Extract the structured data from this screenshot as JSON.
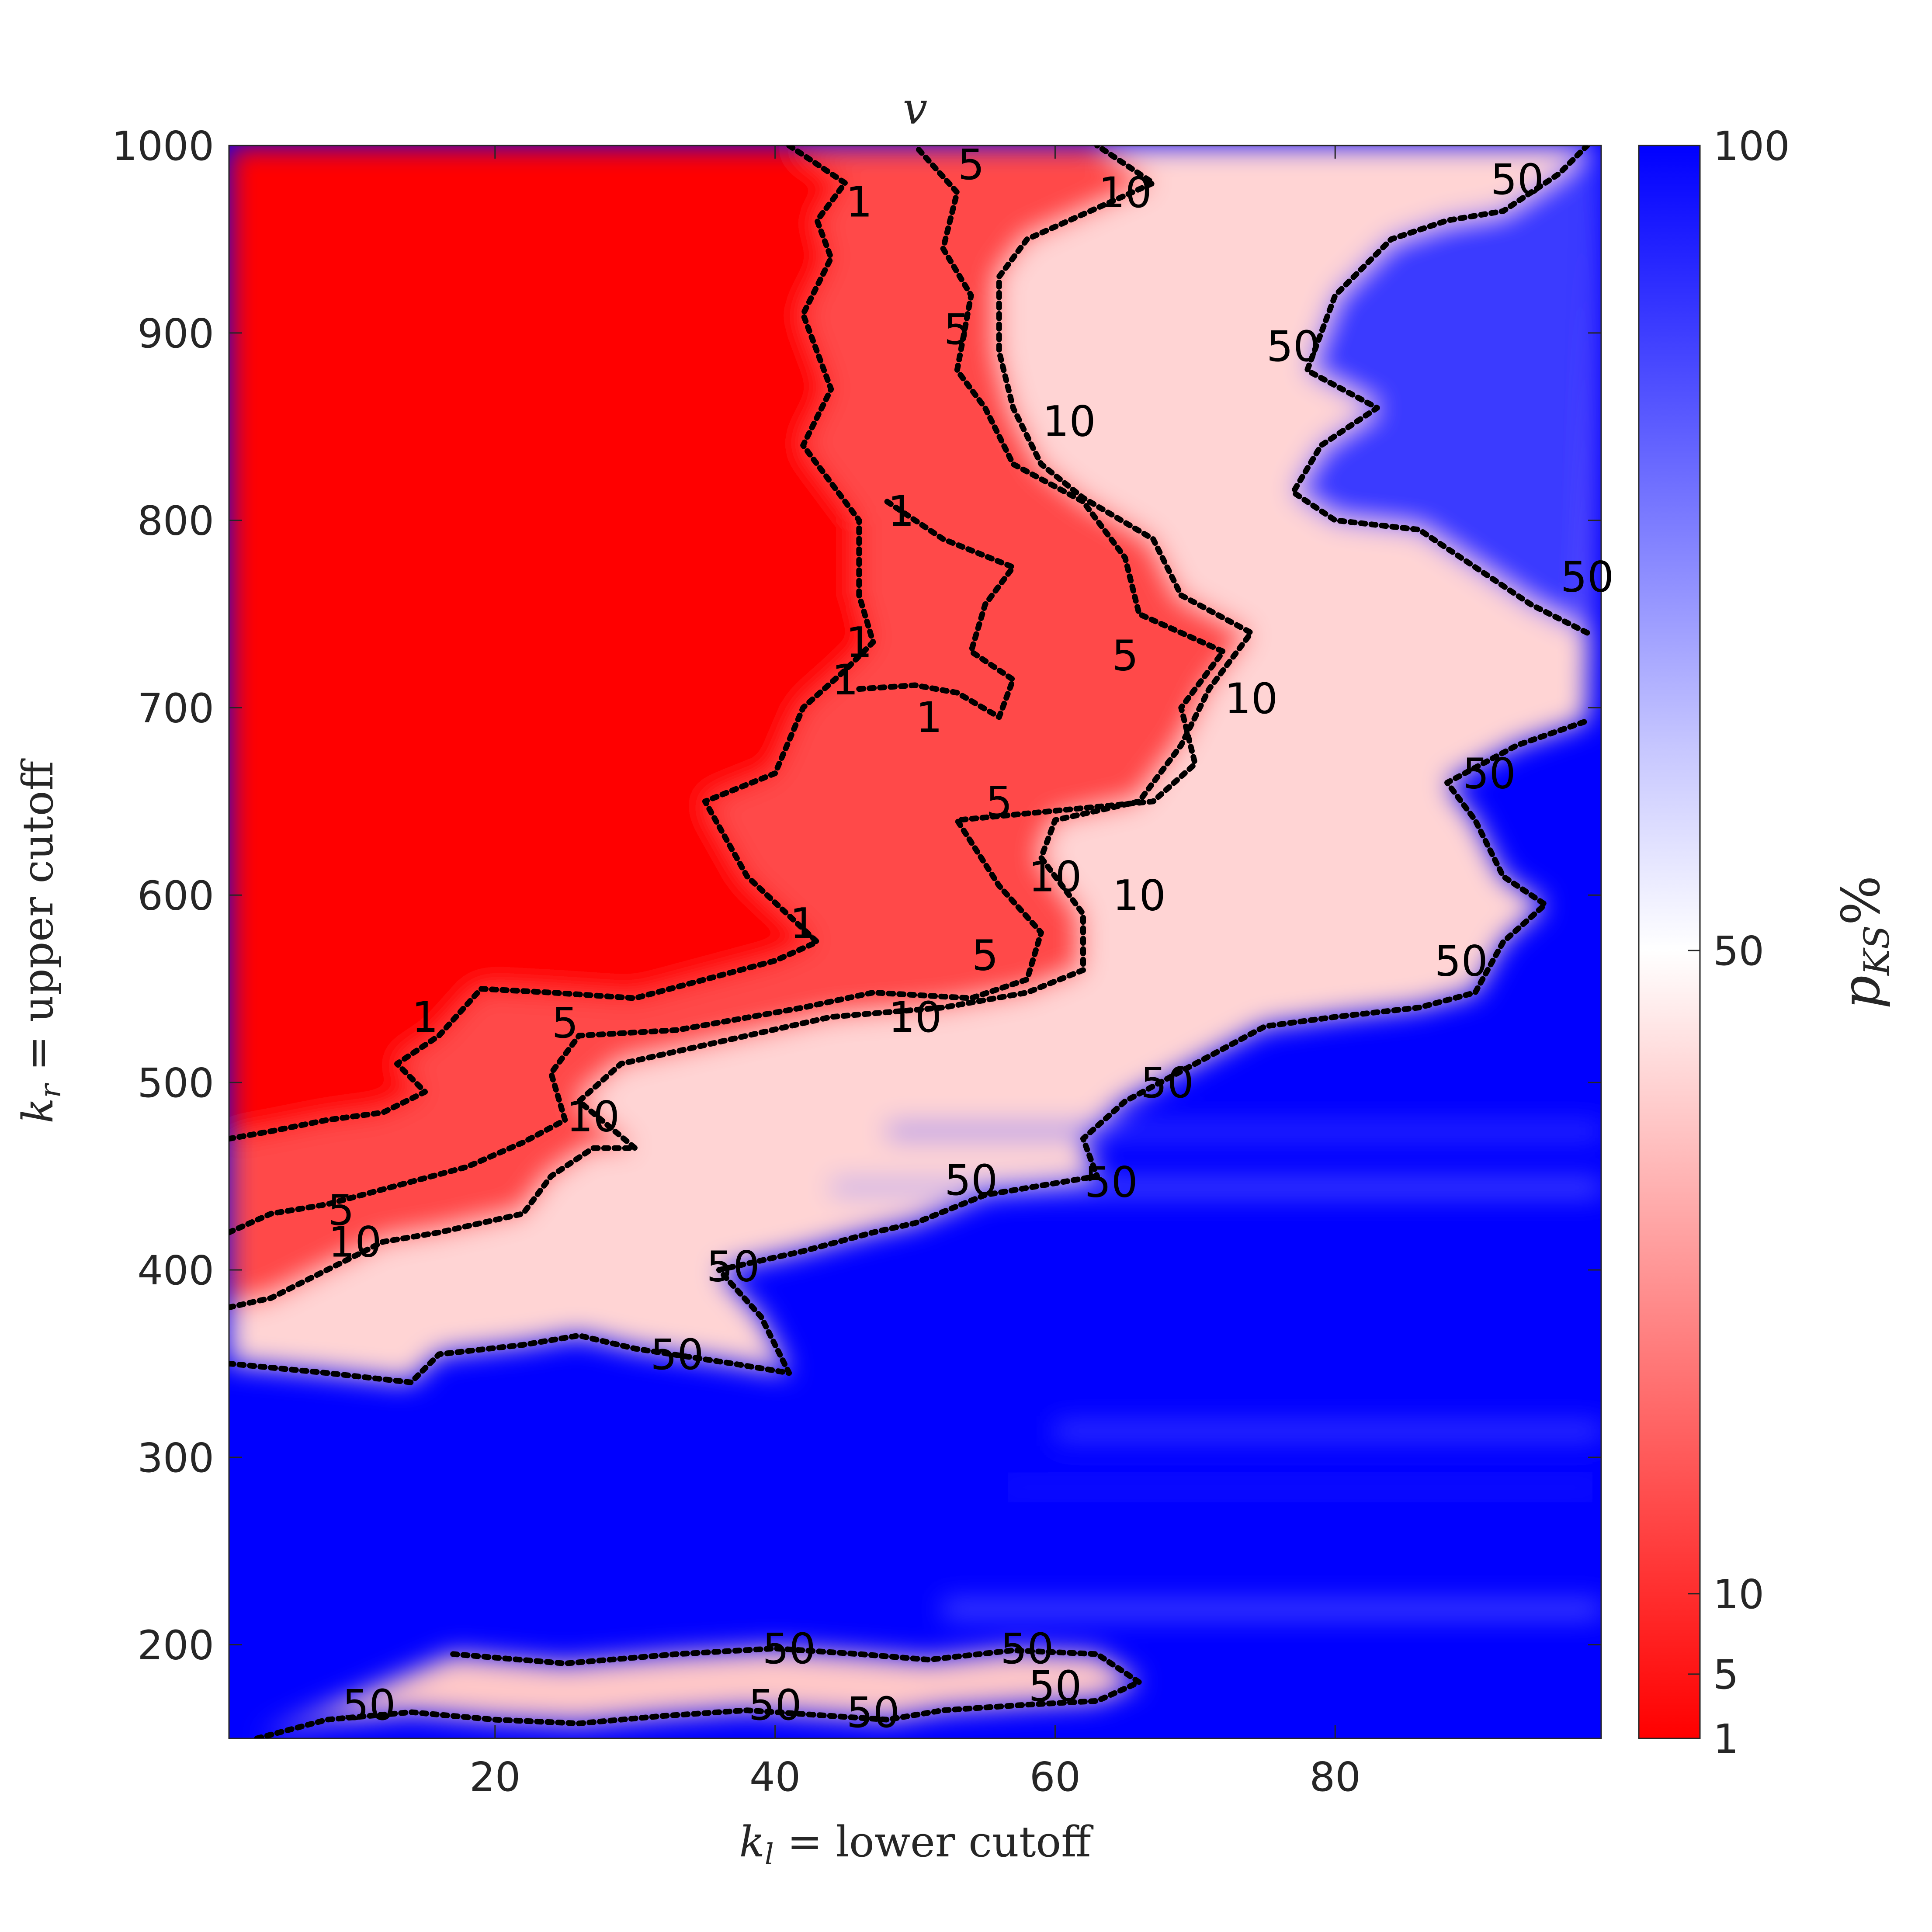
{
  "chart_data": {
    "type": "heatmap",
    "title": "v",
    "xlabel_var": "k",
    "xlabel_sub": "l",
    "xlabel_text": " = lower cutoff",
    "ylabel_var": "k",
    "ylabel_sub": "r",
    "ylabel_text": " = upper cutoff",
    "colorbar_label_var": "p",
    "colorbar_label_sub": "KS",
    "colorbar_label_suffix": "%",
    "xlim": [
      1,
      99
    ],
    "ylim": [
      150,
      1000
    ],
    "x_ticks": [
      20,
      40,
      60,
      80
    ],
    "y_ticks": [
      200,
      300,
      400,
      500,
      600,
      700,
      800,
      900,
      1000
    ],
    "colorbar_ticks": [
      1,
      5,
      10,
      50,
      100
    ],
    "colorbar_range": [
      1,
      100
    ],
    "colormap": {
      "low": "#ff0000",
      "mid": "#ffffff",
      "high": "#0000ff"
    },
    "contour_levels": [
      1,
      5,
      10,
      50
    ],
    "contours": [
      {
        "level": "1",
        "points": [
          [
            1,
            470
          ],
          [
            4,
            474
          ],
          [
            8,
            480
          ],
          [
            12,
            484
          ],
          [
            15,
            495
          ],
          [
            13,
            510
          ],
          [
            16,
            525
          ],
          [
            19,
            550
          ],
          [
            24,
            548
          ],
          [
            30,
            545
          ],
          [
            35,
            555
          ],
          [
            40,
            565
          ],
          [
            43,
            575
          ],
          [
            38,
            610
          ],
          [
            35,
            650
          ],
          [
            40,
            665
          ],
          [
            42,
            700
          ],
          [
            45,
            720
          ],
          [
            47,
            735
          ],
          [
            46,
            760
          ],
          [
            46,
            800
          ],
          [
            42,
            840
          ],
          [
            44,
            870
          ],
          [
            42,
            910
          ],
          [
            44,
            940
          ],
          [
            43,
            960
          ],
          [
            45,
            980
          ],
          [
            41,
            1000
          ]
        ],
        "labels": [
          {
            "text": "1",
            "x": 15,
            "y": 535
          },
          {
            "text": "1",
            "x": 42,
            "y": 585
          },
          {
            "text": "1",
            "x": 45,
            "y": 715
          },
          {
            "text": "1",
            "x": 46,
            "y": 735
          },
          {
            "text": "1",
            "x": 49,
            "y": 805
          },
          {
            "text": "1",
            "x": 46,
            "y": 970
          }
        ]
      },
      {
        "level": "1",
        "points": [
          [
            46,
            710
          ],
          [
            50,
            712
          ],
          [
            53,
            708
          ],
          [
            56,
            695
          ],
          [
            57,
            715
          ],
          [
            54,
            730
          ],
          [
            55,
            755
          ],
          [
            57,
            775
          ],
          [
            52,
            790
          ],
          [
            48,
            810
          ]
        ],
        "labels": [
          {
            "text": "1",
            "x": 51,
            "y": 695
          }
        ]
      },
      {
        "level": "5",
        "points": [
          [
            1,
            420
          ],
          [
            4,
            430
          ],
          [
            8,
            435
          ],
          [
            13,
            445
          ],
          [
            18,
            455
          ],
          [
            22,
            468
          ],
          [
            25,
            480
          ],
          [
            24,
            505
          ],
          [
            26,
            525
          ],
          [
            33,
            528
          ],
          [
            42,
            540
          ],
          [
            47,
            548
          ],
          [
            54,
            545
          ],
          [
            58,
            555
          ],
          [
            59,
            580
          ],
          [
            56,
            605
          ],
          [
            53,
            640
          ],
          [
            60,
            645
          ],
          [
            67,
            650
          ],
          [
            70,
            670
          ],
          [
            69,
            700
          ],
          [
            72,
            730
          ],
          [
            66,
            750
          ],
          [
            65,
            780
          ],
          [
            62,
            810
          ],
          [
            57,
            830
          ],
          [
            55,
            860
          ],
          [
            53,
            880
          ],
          [
            54,
            920
          ],
          [
            52,
            945
          ],
          [
            53,
            975
          ],
          [
            50,
            1000
          ]
        ],
        "labels": [
          {
            "text": "5",
            "x": 9,
            "y": 432
          },
          {
            "text": "5",
            "x": 25,
            "y": 532
          },
          {
            "text": "5",
            "x": 55,
            "y": 568
          },
          {
            "text": "5",
            "x": 56,
            "y": 650
          },
          {
            "text": "5",
            "x": 65,
            "y": 728
          },
          {
            "text": "5",
            "x": 53,
            "y": 902
          },
          {
            "text": "5",
            "x": 54,
            "y": 990
          }
        ]
      },
      {
        "level": "10",
        "points": [
          [
            1,
            380
          ],
          [
            4,
            385
          ],
          [
            8,
            400
          ],
          [
            12,
            415
          ],
          [
            16,
            420
          ],
          [
            22,
            430
          ],
          [
            24,
            450
          ],
          [
            27,
            465
          ],
          [
            30,
            465
          ],
          [
            26,
            490
          ],
          [
            29,
            510
          ],
          [
            35,
            520
          ],
          [
            44,
            535
          ],
          [
            52,
            540
          ],
          [
            58,
            548
          ],
          [
            62,
            560
          ],
          [
            62,
            590
          ],
          [
            59,
            620
          ],
          [
            60,
            640
          ],
          [
            66,
            650
          ],
          [
            69,
            680
          ],
          [
            71,
            710
          ],
          [
            74,
            740
          ],
          [
            69,
            760
          ],
          [
            67,
            790
          ],
          [
            62,
            812
          ],
          [
            59,
            830
          ],
          [
            57,
            860
          ],
          [
            56,
            890
          ],
          [
            56,
            930
          ],
          [
            58,
            950
          ],
          [
            64,
            970
          ],
          [
            67,
            980
          ],
          [
            63,
            1000
          ]
        ],
        "labels": [
          {
            "text": "10",
            "x": 10,
            "y": 415
          },
          {
            "text": "10",
            "x": 27,
            "y": 482
          },
          {
            "text": "10",
            "x": 50,
            "y": 535
          },
          {
            "text": "10",
            "x": 60,
            "y": 610
          },
          {
            "text": "10",
            "x": 66,
            "y": 600
          },
          {
            "text": "10",
            "x": 74,
            "y": 705
          },
          {
            "text": "10",
            "x": 61,
            "y": 853
          },
          {
            "text": "10",
            "x": 65,
            "y": 975
          }
        ]
      },
      {
        "level": "50",
        "points": [
          [
            1,
            350
          ],
          [
            8,
            345
          ],
          [
            14,
            340
          ],
          [
            16,
            355
          ],
          [
            22,
            360
          ],
          [
            26,
            365
          ],
          [
            30,
            358
          ],
          [
            37,
            350
          ],
          [
            41,
            345
          ],
          [
            39,
            375
          ],
          [
            36,
            400
          ],
          [
            42,
            410
          ],
          [
            47,
            420
          ],
          [
            50,
            425
          ],
          [
            55,
            440
          ],
          [
            63,
            450
          ],
          [
            62,
            470
          ],
          [
            65,
            490
          ],
          [
            70,
            510
          ],
          [
            75,
            530
          ],
          [
            80,
            535
          ],
          [
            86,
            540
          ],
          [
            90,
            548
          ],
          [
            92,
            575
          ],
          [
            95,
            595
          ],
          [
            92,
            610
          ],
          [
            90,
            640
          ],
          [
            88,
            660
          ],
          [
            93,
            680
          ],
          [
            98,
            693
          ]
        ],
        "labels": [
          {
            "text": "50",
            "x": 33,
            "y": 355
          },
          {
            "text": "50",
            "x": 37,
            "y": 402
          },
          {
            "text": "50",
            "x": 54,
            "y": 448
          },
          {
            "text": "50",
            "x": 64,
            "y": 447
          },
          {
            "text": "50",
            "x": 68,
            "y": 500
          },
          {
            "text": "50",
            "x": 89,
            "y": 565
          },
          {
            "text": "50",
            "x": 91,
            "y": 665
          }
        ]
      },
      {
        "level": "50",
        "points": [
          [
            98,
            740
          ],
          [
            94,
            755
          ],
          [
            90,
            775
          ],
          [
            86,
            795
          ],
          [
            80,
            800
          ],
          [
            77,
            815
          ],
          [
            79,
            840
          ],
          [
            83,
            860
          ],
          [
            78,
            880
          ],
          [
            80,
            920
          ],
          [
            84,
            950
          ],
          [
            88,
            960
          ],
          [
            92,
            965
          ],
          [
            96,
            985
          ],
          [
            98,
            1000
          ]
        ],
        "labels": [
          {
            "text": "50",
            "x": 98,
            "y": 770
          },
          {
            "text": "50",
            "x": 77,
            "y": 893
          },
          {
            "text": "50",
            "x": 93,
            "y": 982
          }
        ]
      },
      {
        "level": "50",
        "points": [
          [
            3,
            150
          ],
          [
            8,
            160
          ],
          [
            14,
            164
          ],
          [
            20,
            160
          ],
          [
            26,
            158
          ],
          [
            32,
            162
          ],
          [
            38,
            165
          ],
          [
            44,
            162
          ],
          [
            48,
            160
          ],
          [
            52,
            165
          ],
          [
            58,
            168
          ],
          [
            63,
            170
          ],
          [
            66,
            180
          ],
          [
            63,
            195
          ],
          [
            57,
            197
          ],
          [
            51,
            192
          ],
          [
            46,
            195
          ],
          [
            40,
            198
          ],
          [
            33,
            195
          ],
          [
            25,
            190
          ],
          [
            17,
            195
          ]
        ],
        "labels": [
          {
            "text": "50",
            "x": 11,
            "y": 168
          },
          {
            "text": "50",
            "x": 41,
            "y": 198
          },
          {
            "text": "50",
            "x": 40,
            "y": 168
          },
          {
            "text": "50",
            "x": 47,
            "y": 164
          },
          {
            "text": "50",
            "x": 58,
            "y": 198
          },
          {
            "text": "50",
            "x": 60,
            "y": 178
          }
        ]
      }
    ]
  }
}
